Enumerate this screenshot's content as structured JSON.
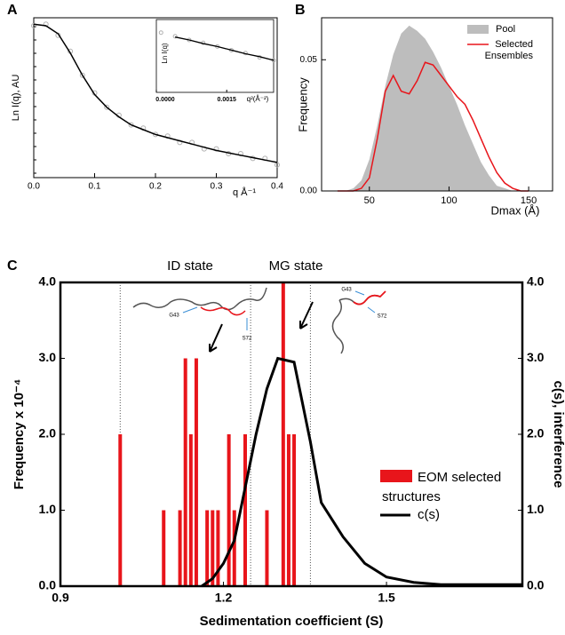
{
  "chart_data": [
    {
      "type": "scatter",
      "label": "A",
      "xlabel": "q Å⁻¹",
      "ylabel": "Ln I(q), AU",
      "log_scale": true,
      "xlim": [
        0,
        0.4
      ],
      "ylim": [
        0,
        1
      ],
      "xticks": [
        {
          "value": 0,
          "label": "0.0"
        },
        0.1,
        0.2,
        0.3,
        0.4
      ],
      "x": [
        0,
        0.02,
        0.04,
        0.06,
        0.08,
        0.1,
        0.12,
        0.14,
        0.16,
        0.18,
        0.2,
        0.22,
        0.24,
        0.26,
        0.28,
        0.3,
        0.32,
        0.34,
        0.36,
        0.38,
        0.4
      ],
      "series": [
        {
          "color": "#b0b0b0",
          "values": [
            0.95,
            0.96,
            0.89,
            0.79,
            0.64,
            0.53,
            0.44,
            0.39,
            0.33,
            0.31,
            0.27,
            0.26,
            0.22,
            0.22,
            0.18,
            0.18,
            0.15,
            0.15,
            0.12,
            0.12,
            0.08
          ]
        },
        {
          "color": "#000000",
          "values": [
            0.96,
            0.95,
            0.9,
            0.78,
            0.64,
            0.52,
            0.44,
            0.38,
            0.33,
            0.3,
            0.27,
            0.25,
            0.23,
            0.21,
            0.19,
            0.17,
            0.155,
            0.14,
            0.125,
            0.11,
            0.095
          ]
        }
      ]
    },
    {
      "type": "line",
      "xlabel": "q²(Å⁻²)",
      "ylabel": "Ln I(q)",
      "xlim": [
        0,
        0.0025
      ],
      "ylim": [
        0,
        1
      ],
      "xticks": [
        {
          "value": 0,
          "label": "0.0000"
        },
        {
          "value": 0.0015,
          "label": "0.0015"
        }
      ],
      "x": [
        0.0001,
        0.0004,
        0.0007,
        0.001,
        0.0013,
        0.0016,
        0.0019,
        0.0022,
        0.0025
      ],
      "series": [
        {
          "color": "#b0b0b0",
          "values": [
            0.82,
            0.77,
            0.72,
            0.68,
            0.63,
            0.58,
            0.54,
            0.48,
            0.44
          ]
        },
        {
          "color": "#000000",
          "values": [
            null,
            0.76,
            0.72,
            0.67,
            0.63,
            0.58,
            0.53,
            0.49,
            0.44
          ]
        }
      ]
    },
    {
      "type": "area",
      "label": "B",
      "xlabel": "Dmax (Å)",
      "ylabel": "Frequency",
      "legend": "upper right",
      "xlim": [
        20,
        165
      ],
      "ylim": [
        0,
        0.066
      ],
      "xticks": [
        50,
        100,
        150
      ],
      "yticks": [
        {
          "value": 0,
          "label": "0.00"
        },
        {
          "value": 0.05,
          "label": "0.05"
        }
      ],
      "x": [
        30,
        35,
        40,
        45,
        50,
        55,
        60,
        65,
        70,
        75,
        80,
        85,
        90,
        95,
        100,
        105,
        110,
        115,
        120,
        125,
        130,
        135,
        140,
        145,
        150
      ],
      "series": [
        {
          "name": "Pool",
          "color": "#bdbdbd",
          "values": [
            0,
            0,
            0.001,
            0.004,
            0.012,
            0.025,
            0.04,
            0.052,
            0.06,
            0.063,
            0.061,
            0.058,
            0.053,
            0.047,
            0.04,
            0.033,
            0.025,
            0.018,
            0.011,
            0.006,
            0.002,
            0.001,
            0,
            0,
            0
          ]
        },
        {
          "name": "Selected Ensembles",
          "color": "#e8151b",
          "values": [
            0,
            0,
            0,
            0.001,
            0.005,
            0.02,
            0.038,
            0.044,
            0.038,
            0.037,
            0.042,
            0.049,
            0.048,
            0.044,
            0.04,
            0.036,
            0.033,
            0.027,
            0.02,
            0.013,
            0.007,
            0.003,
            0.001,
            0,
            0
          ]
        }
      ]
    },
    {
      "type": "bar",
      "label": "C",
      "xlabel": "Sedimentation coefficient (S)",
      "ylabel": "Frequency x 10⁻⁴",
      "y2label": "c(s), interference",
      "legend": "lower right",
      "xlim": [
        0.9,
        1.75
      ],
      "ylim": [
        0,
        4
      ],
      "y2lim": [
        0,
        4
      ],
      "xticks": [
        0.9,
        1.2,
        1.5
      ],
      "yticks": [
        {
          "value": 0,
          "label": "0.0"
        },
        {
          "value": 1,
          "label": "1.0"
        },
        {
          "value": 2,
          "label": "2.0"
        },
        {
          "value": 3,
          "label": "3.0"
        },
        {
          "value": 4,
          "label": "4.0"
        }
      ],
      "y2ticks": [
        {
          "value": 0,
          "label": "0.0"
        },
        {
          "value": 1,
          "label": "1.0"
        },
        {
          "value": 2,
          "label": "2.0"
        },
        {
          "value": 3,
          "label": "3.0"
        },
        {
          "value": 4,
          "label": "4.0"
        }
      ],
      "reference_lines": [
        1.01,
        1.25,
        1.36
      ],
      "annotations": [
        "ID state",
        "MG state",
        "G43",
        "S72",
        "G43",
        "S72"
      ],
      "series": [
        {
          "name": "EOM selected structures",
          "color": "#e8151b",
          "x": [
            1.01,
            1.09,
            1.12,
            1.13,
            1.14,
            1.15,
            1.17,
            1.18,
            1.19,
            1.21,
            1.22,
            1.24,
            1.28,
            1.31,
            1.32,
            1.33
          ],
          "values": [
            2,
            1,
            1,
            3,
            2,
            3,
            1,
            1,
            1,
            2,
            1,
            2,
            1,
            4,
            2,
            2
          ]
        },
        {
          "name": "c(s)",
          "color": "#000000",
          "axis": "y2",
          "x": [
            1.16,
            1.18,
            1.2,
            1.22,
            1.24,
            1.26,
            1.28,
            1.3,
            1.33,
            1.36,
            1.38,
            1.42,
            1.46,
            1.5,
            1.55,
            1.6,
            1.7,
            1.75
          ],
          "values": [
            0,
            0.1,
            0.3,
            0.6,
            1.3,
            2,
            2.6,
            3,
            2.95,
            1.9,
            1.1,
            0.65,
            0.3,
            0.12,
            0.05,
            0.02,
            0.02,
            0.02
          ]
        }
      ]
    }
  ]
}
